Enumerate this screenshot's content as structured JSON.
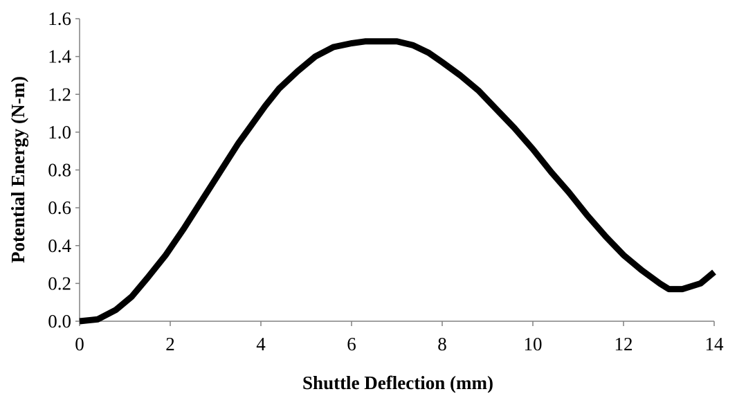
{
  "chart_data": {
    "type": "line",
    "title": "",
    "xlabel": "Shuttle Deflection (mm)",
    "ylabel": "Potential Energy (N-m)",
    "xlim": [
      0,
      14
    ],
    "ylim": [
      0,
      1.6
    ],
    "x_ticks": [
      0,
      2,
      4,
      6,
      8,
      10,
      12,
      14
    ],
    "y_ticks": [
      0.0,
      0.2,
      0.4,
      0.6,
      0.8,
      1.0,
      1.2,
      1.4,
      1.6
    ],
    "x_tick_labels": [
      "0",
      "2",
      "4",
      "6",
      "8",
      "10",
      "12",
      "14"
    ],
    "y_tick_labels": [
      "0.0",
      "0.2",
      "0.4",
      "0.6",
      "0.8",
      "1.0",
      "1.2",
      "1.4",
      "1.6"
    ],
    "grid": false,
    "legend": "none",
    "line_color": "#000000",
    "series": [
      {
        "x": [
          0,
          0.4,
          0.8,
          1.15,
          1.5,
          1.9,
          2.3,
          2.7,
          3.1,
          3.5,
          3.8,
          4.1,
          4.4,
          4.8,
          5.2,
          5.6,
          6.0,
          6.3,
          6.6,
          7.0,
          7.35,
          7.7,
          8.0,
          8.4,
          8.8,
          9.2,
          9.6,
          10.0,
          10.4,
          10.8,
          11.2,
          11.6,
          12.0,
          12.4,
          12.8,
          13.0,
          13.3,
          13.7,
          14.0
        ],
        "y": [
          0.0,
          0.01,
          0.06,
          0.13,
          0.23,
          0.35,
          0.49,
          0.64,
          0.79,
          0.94,
          1.04,
          1.14,
          1.23,
          1.32,
          1.4,
          1.45,
          1.47,
          1.48,
          1.48,
          1.48,
          1.46,
          1.42,
          1.37,
          1.3,
          1.22,
          1.12,
          1.02,
          0.91,
          0.79,
          0.68,
          0.56,
          0.45,
          0.35,
          0.27,
          0.2,
          0.17,
          0.17,
          0.2,
          0.26
        ]
      }
    ]
  }
}
